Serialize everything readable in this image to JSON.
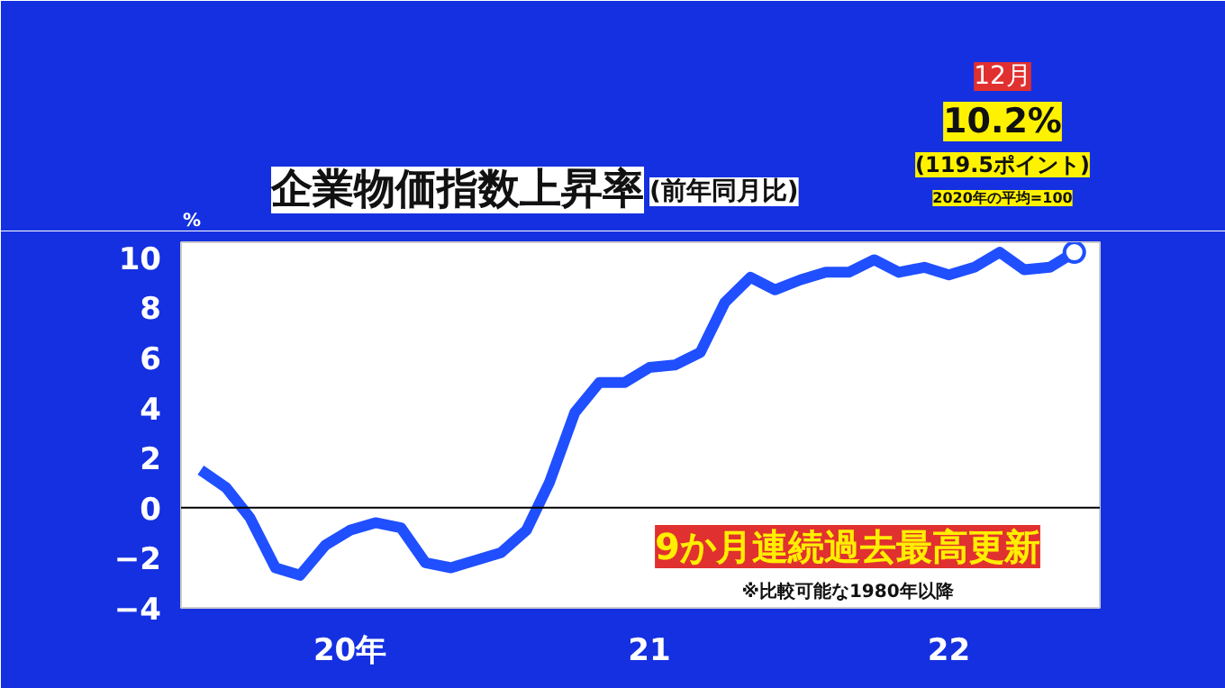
{
  "chart_data": {
    "type": "line",
    "title": "企業物価指数上昇率",
    "subtitle": "(前年同月比)",
    "ylabel": "%",
    "x": [
      "2020-01",
      "2020-02",
      "2020-03",
      "2020-04",
      "2020-05",
      "2020-06",
      "2020-07",
      "2020-08",
      "2020-09",
      "2020-10",
      "2020-11",
      "2020-12",
      "2021-01",
      "2021-02",
      "2021-03",
      "2021-04",
      "2021-05",
      "2021-06",
      "2021-07",
      "2021-08",
      "2021-09",
      "2021-10",
      "2021-11",
      "2021-12",
      "2022-01",
      "2022-02",
      "2022-03",
      "2022-04",
      "2022-05",
      "2022-06",
      "2022-07",
      "2022-08",
      "2022-09",
      "2022-10",
      "2022-11",
      "2022-12"
    ],
    "series": [
      {
        "color": "#1f4fff",
        "values": [
          1.5,
          0.8,
          -0.4,
          -2.4,
          -2.7,
          -1.5,
          -0.9,
          -0.6,
          -0.8,
          -2.2,
          -2.4,
          -2.1,
          -1.8,
          -0.9,
          1.0,
          3.8,
          5.0,
          5.0,
          5.6,
          5.7,
          6.2,
          8.2,
          9.2,
          8.7,
          9.1,
          9.4,
          9.4,
          9.9,
          9.4,
          9.6,
          9.3,
          9.6,
          10.2,
          9.5,
          9.6,
          10.2
        ]
      }
    ],
    "xlim": [
      "2019-12-08",
      "2023-01-01"
    ],
    "xticks": [
      {
        "value": "2020-07-01",
        "label": "20年"
      },
      {
        "value": "2021-07-01",
        "label": "21"
      },
      {
        "value": "2022-07-01",
        "label": "22"
      }
    ],
    "ylim": [
      -4,
      10.6
    ],
    "yticks": [
      -4,
      -2,
      0,
      2,
      4,
      6,
      8,
      10
    ],
    "ref_lines": [
      {
        "axis": "y",
        "value": 0,
        "color": "#000000"
      }
    ],
    "grid": false,
    "line_style": "solid",
    "annotations": [
      "12月",
      "10.2%",
      "(119.5ポイント)",
      "2020年の平均=100",
      "9か月連続過去最高更新",
      "※比較可能な1980年以降"
    ]
  }
}
